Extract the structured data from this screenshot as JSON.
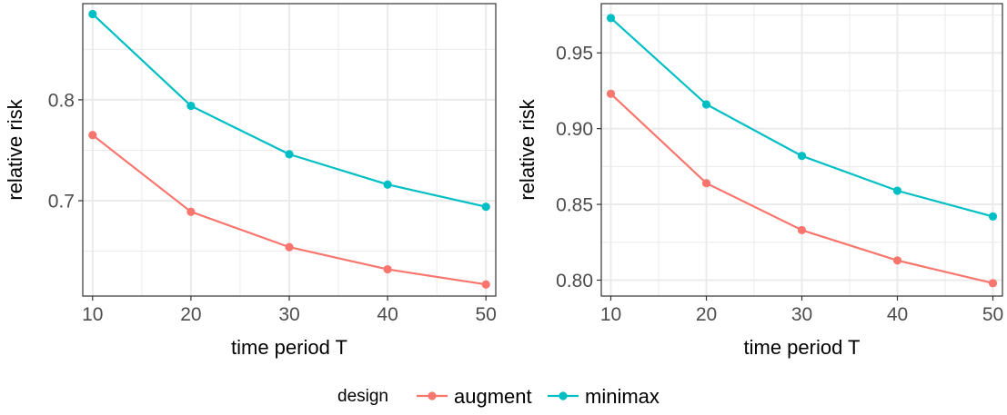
{
  "legend": {
    "title": "design",
    "entries": [
      {
        "name": "augment",
        "color": "#F8766D"
      },
      {
        "name": "minimax",
        "color": "#00BFC4"
      }
    ],
    "placement": "bottom"
  },
  "chart_data": [
    {
      "type": "line",
      "title": "",
      "xlabel": "time period T",
      "ylabel": "relative risk",
      "x": [
        10,
        20,
        30,
        40,
        50
      ],
      "xticks": [
        "10",
        "20",
        "30",
        "40",
        "50"
      ],
      "yticks": [
        "0.7",
        "0.8"
      ],
      "xlim": [
        9,
        51
      ],
      "ylim": [
        0.6055,
        0.8953
      ],
      "grid": true,
      "series": [
        {
          "name": "augment",
          "color": "#F8766D",
          "values": [
            0.765,
            0.689,
            0.654,
            0.632,
            0.617
          ]
        },
        {
          "name": "minimax",
          "color": "#00BFC4",
          "values": [
            0.885,
            0.794,
            0.746,
            0.716,
            0.694
          ]
        }
      ]
    },
    {
      "type": "line",
      "title": "",
      "xlabel": "time period T",
      "ylabel": "relative risk",
      "x": [
        10,
        20,
        30,
        40,
        50
      ],
      "xticks": [
        "10",
        "20",
        "30",
        "40",
        "50"
      ],
      "yticks": [
        "0.80",
        "0.85",
        "0.90",
        "0.95"
      ],
      "xlim": [
        9,
        51
      ],
      "ylim": [
        0.7895,
        0.9825
      ],
      "grid": true,
      "series": [
        {
          "name": "augment",
          "color": "#F8766D",
          "values": [
            0.923,
            0.864,
            0.833,
            0.813,
            0.798
          ]
        },
        {
          "name": "minimax",
          "color": "#00BFC4",
          "values": [
            0.973,
            0.916,
            0.882,
            0.859,
            0.842
          ]
        }
      ]
    }
  ]
}
